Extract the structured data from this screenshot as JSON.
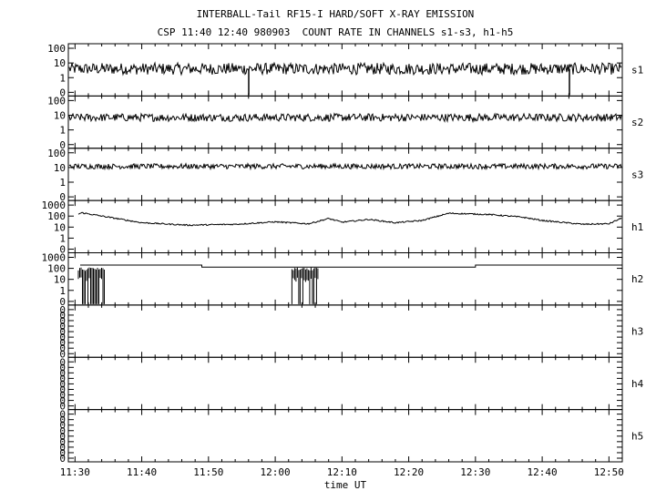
{
  "header": {
    "title": "INTERBALL-Tail RF15-I HARD/SOFT X-RAY EMISSION",
    "subtitle": "CSP 11:40 12:40 980903  COUNT RATE IN CHANNELS s1-s3, h1-h5"
  },
  "chart_data": {
    "type": "line",
    "title": "INTERBALL-Tail RF15-I HARD/SOFT X-RAY EMISSION",
    "subtitle": "CSP 11:40 12:40 980903  COUNT RATE IN CHANNELS s1-s3, h1-h5",
    "xlabel": "time UT",
    "x_ticks": [
      "11:30",
      "11:40",
      "11:50",
      "12:00",
      "12:10",
      "12:20",
      "12:30",
      "12:40",
      "12:50"
    ],
    "x_range_minutes": [
      689,
      772
    ],
    "yscale": "log",
    "panels": [
      {
        "name": "s1",
        "yticks": [
          "100",
          "10",
          "1",
          "0"
        ],
        "level": 4,
        "noise": 0.18,
        "dropouts": [
          [
            775,
            0
          ],
          [
            1220,
            0
          ],
          [
            1450,
            0
          ]
        ]
      },
      {
        "name": "s2",
        "yticks": [
          "100",
          "10",
          "1",
          "0"
        ],
        "level": 7,
        "noise": 0.12,
        "dropouts": []
      },
      {
        "name": "s3",
        "yticks": [
          "100",
          "10",
          "1",
          "0"
        ],
        "level": 12,
        "noise": 0.08,
        "dropouts": []
      },
      {
        "name": "h1",
        "yticks": [
          "1000",
          "100",
          "10",
          "1",
          "0"
        ],
        "profile": [
          [
            689,
            60
          ],
          [
            691,
            200
          ],
          [
            695,
            80
          ],
          [
            700,
            25
          ],
          [
            707,
            15
          ],
          [
            714,
            18
          ],
          [
            720,
            30
          ],
          [
            725,
            20
          ],
          [
            728,
            60
          ],
          [
            730,
            28
          ],
          [
            734,
            50
          ],
          [
            738,
            25
          ],
          [
            742,
            40
          ],
          [
            746,
            180
          ],
          [
            752,
            140
          ],
          [
            757,
            80
          ],
          [
            760,
            40
          ],
          [
            766,
            18
          ],
          [
            770,
            20
          ],
          [
            772,
            70
          ]
        ]
      },
      {
        "name": "h2",
        "yticks": [
          "1000",
          "100",
          "10",
          "1",
          "0"
        ],
        "baseline_profile": [
          [
            689,
            200
          ],
          [
            709,
            200
          ],
          [
            709,
            130
          ],
          [
            750,
            130
          ],
          [
            750,
            200
          ],
          [
            772,
            200
          ]
        ],
        "bursts": [
          [
            690.5,
            694.5
          ],
          [
            722.5,
            726.5
          ]
        ]
      },
      {
        "name": "h3",
        "yticks": [
          "0",
          "0",
          "0",
          "0",
          "0",
          "0",
          "0",
          "0",
          "0"
        ],
        "empty": true
      },
      {
        "name": "h4",
        "yticks": [
          "0",
          "0",
          "0",
          "0",
          "0",
          "0",
          "0",
          "0",
          "0"
        ],
        "empty": true
      },
      {
        "name": "h5",
        "yticks": [
          "0",
          "0",
          "0",
          "0",
          "0",
          "0",
          "0",
          "0",
          "0"
        ],
        "empty": true
      }
    ]
  }
}
